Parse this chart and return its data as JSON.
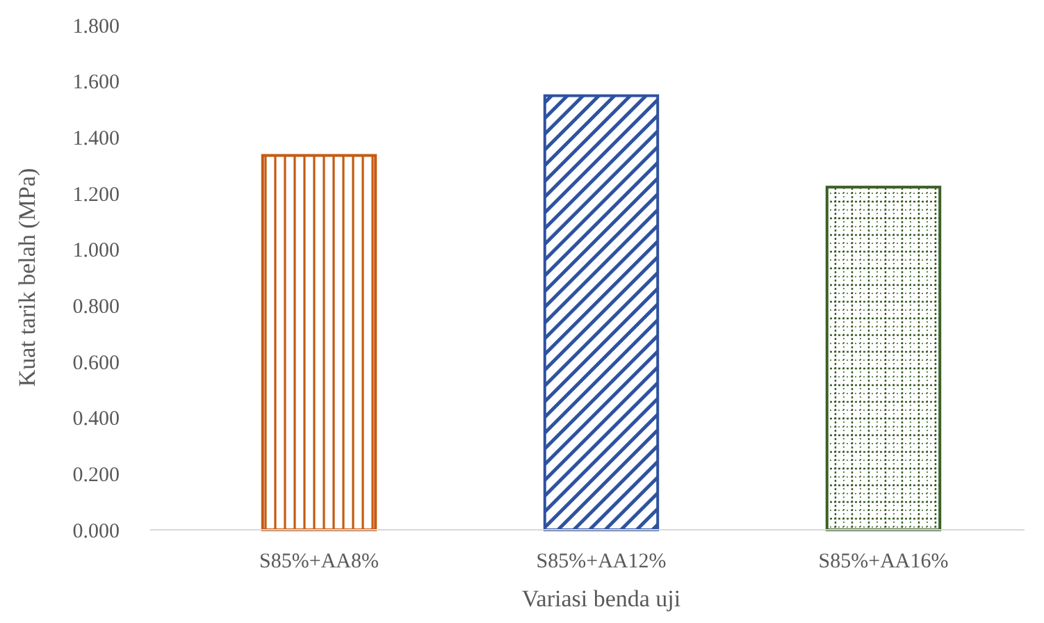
{
  "chart_data": {
    "type": "bar",
    "xlabel": "Variasi benda uji",
    "ylabel": "Kuat tarik belah (MPa)",
    "categories": [
      "S85%+AA8%",
      "S85%+AA12%",
      "S85%+AA16%"
    ],
    "values": [
      1.335,
      1.548,
      1.222
    ],
    "colors": [
      "#c55a11",
      "#2f52a0",
      "#3b6128"
    ],
    "ylim": [
      0,
      1.8
    ],
    "yticks": [
      {
        "value": 0,
        "label": "0.000"
      },
      {
        "value": 0.2,
        "label": "0.200"
      },
      {
        "value": 0.4,
        "label": "0.400"
      },
      {
        "value": 0.6,
        "label": "0.600"
      },
      {
        "value": 0.8,
        "label": "0.800"
      },
      {
        "value": 1,
        "label": "1.000"
      },
      {
        "value": 1.2,
        "label": "1.200"
      },
      {
        "value": 1.4,
        "label": "1.400"
      },
      {
        "value": 1.6,
        "label": "1.600"
      },
      {
        "value": 1.8,
        "label": "1.800"
      }
    ],
    "grid": false
  }
}
